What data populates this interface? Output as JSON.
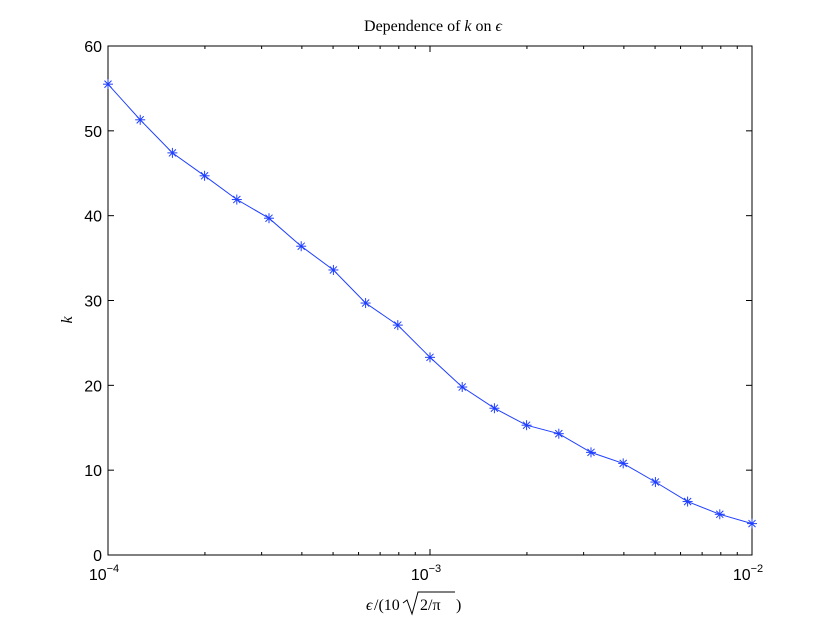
{
  "chart_data": {
    "type": "line",
    "title_parts": {
      "prefix": "Dependence of ",
      "var": "k",
      "mid": " on ",
      "sym": "ϵ"
    },
    "xlabel_parts": {
      "eps": "ϵ",
      "open": "/(10",
      "radicand": "2/π",
      "close": ")"
    },
    "ylabel": "k",
    "x_scale": "log",
    "xlim": [
      0.0001,
      0.01
    ],
    "ylim": [
      0,
      60
    ],
    "x_ticks": [
      {
        "value": 0.0001,
        "base": "10",
        "exp": "−4"
      },
      {
        "value": 0.001,
        "base": "10",
        "exp": "−3"
      },
      {
        "value": 0.01,
        "base": "10",
        "exp": "−2"
      }
    ],
    "y_ticks": [
      {
        "value": 0,
        "label": "0"
      },
      {
        "value": 10,
        "label": "10"
      },
      {
        "value": 20,
        "label": "20"
      },
      {
        "value": 30,
        "label": "30"
      },
      {
        "value": 40,
        "label": "40"
      },
      {
        "value": 50,
        "label": "50"
      },
      {
        "value": 60,
        "label": "60"
      }
    ],
    "grid": false,
    "marker": "asterisk",
    "series": [
      {
        "color": "#1f3fff",
        "x": [
          0.0001,
          0.0001259,
          0.0001585,
          0.0001995,
          0.0002512,
          0.0003162,
          0.0003981,
          0.0005012,
          0.000631,
          0.0007943,
          0.001,
          0.001259,
          0.001585,
          0.001995,
          0.002512,
          0.003162,
          0.003981,
          0.005012,
          0.00631,
          0.007943,
          0.01
        ],
        "y": [
          55.5,
          51.3,
          47.4,
          44.7,
          41.9,
          39.7,
          36.4,
          33.6,
          29.7,
          27.1,
          23.3,
          19.8,
          17.3,
          15.3,
          14.3,
          12.1,
          10.8,
          8.6,
          6.3,
          4.8,
          3.7
        ]
      }
    ]
  }
}
